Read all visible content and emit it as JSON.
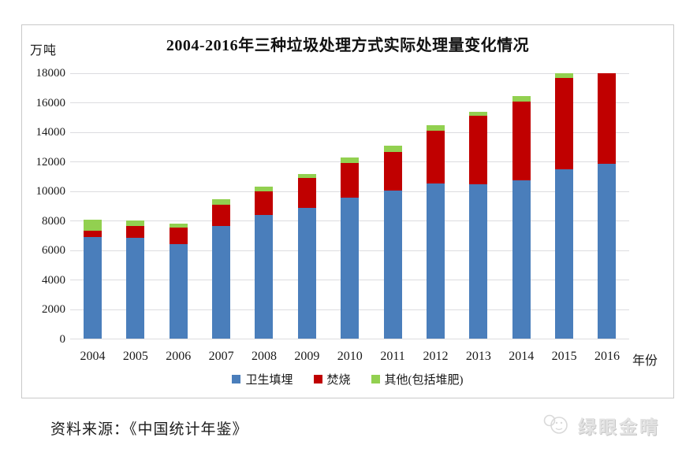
{
  "title": "2004-2016年三种垃圾处理方式实际处理量变化情况",
  "y_axis_unit_label": "万吨",
  "source_note": "资料来源：《中国统计年鉴》",
  "watermark_text": "绿眼金晴",
  "colors": {
    "landfill_blue": "#4a7ebb",
    "incineration_red": "#c00000",
    "other_green": "#92d050",
    "gridline_gray": "#dcdcdf",
    "box_border_gray": "#c9c9c9",
    "watermark_gray": "#e3e3e3"
  },
  "chart_data": {
    "type": "bar",
    "stacked": true,
    "title": "2004-2016年三种垃圾处理方式实际处理量变化情况",
    "categories": [
      "2004",
      "2005",
      "2006",
      "2007",
      "2008",
      "2009",
      "2010",
      "2011",
      "2012",
      "2013",
      "2014",
      "2015",
      "2016"
    ],
    "series": [
      {
        "name": "卫生填埋",
        "color": "#4a7ebb",
        "values": [
          6889,
          6857,
          6408,
          7633,
          8424,
          8899,
          9598,
          10064,
          10512,
          10493,
          10744,
          11483,
          11866
        ]
      },
      {
        "name": "焚烧",
        "color": "#c00000",
        "values": [
          449,
          791,
          1138,
          1435,
          1570,
          2022,
          2317,
          2599,
          3584,
          4634,
          5330,
          6176,
          7378
        ]
      },
      {
        "name": "其他(包括堆肥)",
        "color": "#92d050",
        "values": [
          751,
          403,
          292,
          395,
          318,
          241,
          403,
          437,
          387,
          265,
          356,
          354,
          430
        ]
      }
    ],
    "ylabel": "万吨",
    "xlabel": "年份",
    "ylim": [
      0,
      18000
    ],
    "ytick_step": 2000,
    "grid": true,
    "bars_clipped_at_ymax": true,
    "legend_position": "bottom"
  }
}
